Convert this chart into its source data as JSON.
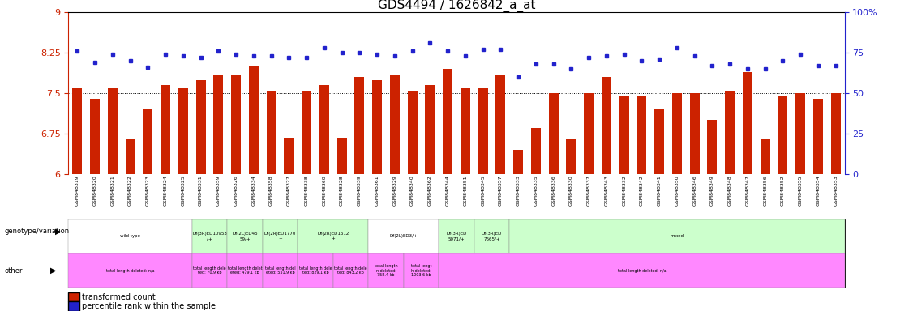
{
  "title": "GDS4494 / 1626842_a_at",
  "samples": [
    "GSM848319",
    "GSM848320",
    "GSM848321",
    "GSM848322",
    "GSM848323",
    "GSM848324",
    "GSM848325",
    "GSM848331",
    "GSM848359",
    "GSM848326",
    "GSM848334",
    "GSM848358",
    "GSM848327",
    "GSM848338",
    "GSM848360",
    "GSM848328",
    "GSM848339",
    "GSM848361",
    "GSM848329",
    "GSM848340",
    "GSM848362",
    "GSM848344",
    "GSM848351",
    "GSM848345",
    "GSM848357",
    "GSM848333",
    "GSM848335",
    "GSM848336",
    "GSM848330",
    "GSM848337",
    "GSM848343",
    "GSM848332",
    "GSM848342",
    "GSM848341",
    "GSM848350",
    "GSM848346",
    "GSM848349",
    "GSM848348",
    "GSM848347",
    "GSM848356",
    "GSM848352",
    "GSM848355",
    "GSM848354",
    "GSM848353"
  ],
  "bar_values": [
    7.6,
    7.4,
    7.6,
    6.65,
    7.2,
    7.65,
    7.6,
    7.75,
    7.85,
    7.85,
    8.0,
    7.55,
    6.67,
    7.55,
    7.65,
    6.68,
    7.8,
    7.75,
    7.85,
    7.55,
    7.65,
    7.95,
    7.6,
    7.6,
    7.85,
    6.45,
    6.85,
    7.5,
    6.65,
    7.5,
    7.8,
    7.45,
    7.45,
    7.2,
    7.5,
    7.5,
    7.0,
    7.55,
    7.9,
    6.65,
    7.45,
    7.5,
    7.4,
    7.5
  ],
  "dot_values": [
    76,
    69,
    74,
    70,
    66,
    74,
    73,
    72,
    76,
    74,
    73,
    73,
    72,
    72,
    78,
    75,
    75,
    74,
    73,
    76,
    81,
    76,
    73,
    77,
    77,
    60,
    68,
    68,
    65,
    72,
    73,
    74,
    70,
    71,
    78,
    73,
    67,
    68,
    65,
    65,
    70,
    74,
    67,
    67
  ],
  "ymin": 6,
  "ymax": 9,
  "yticks_left": [
    6,
    6.75,
    7.5,
    8.25,
    9
  ],
  "ytick_labels_left": [
    "6",
    "6.75",
    "7.5",
    "8.25",
    "9"
  ],
  "yticks_right": [
    0,
    25,
    50,
    75,
    100
  ],
  "ytick_labels_right": [
    "0",
    "25",
    "50",
    "75",
    "100%"
  ],
  "bar_color": "#cc2200",
  "dot_color": "#2222cc",
  "genotype_groups": [
    {
      "label": "wild type",
      "start": 0,
      "end": 7,
      "color": "#ffffff"
    },
    {
      "label": "Df(3R)ED10953\n/+",
      "start": 7,
      "end": 9,
      "color": "#ccffcc"
    },
    {
      "label": "Df(2L)ED45\n59/+",
      "start": 9,
      "end": 11,
      "color": "#ccffcc"
    },
    {
      "label": "Df(2R)ED1770\n+",
      "start": 11,
      "end": 13,
      "color": "#ccffcc"
    },
    {
      "label": "Df(2R)ED1612\n+",
      "start": 13,
      "end": 17,
      "color": "#ccffcc"
    },
    {
      "label": "Df(2L)ED3/+",
      "start": 17,
      "end": 21,
      "color": "#ffffff"
    },
    {
      "label": "Df(3R)ED\n5071/+",
      "start": 21,
      "end": 23,
      "color": "#ccffcc"
    },
    {
      "label": "Df(3R)ED\n7665/+",
      "start": 23,
      "end": 25,
      "color": "#ccffcc"
    },
    {
      "label": "mixed",
      "start": 25,
      "end": 44,
      "color": "#ccffcc"
    }
  ],
  "other_groups": [
    {
      "label": "total length deleted: n/a",
      "start": 0,
      "end": 7,
      "color": "#ff88ff"
    },
    {
      "label": "total length dele\nted: 70.9 kb",
      "start": 7,
      "end": 9,
      "color": "#ff88ff"
    },
    {
      "label": "total length delet\neted: 479.1 kb",
      "start": 9,
      "end": 11,
      "color": "#ff88ff"
    },
    {
      "label": "total length del\neted: 551.9 kb",
      "start": 11,
      "end": 13,
      "color": "#ff88ff"
    },
    {
      "label": "total length dele\nted: 829.1 kb",
      "start": 13,
      "end": 15,
      "color": "#ff88ff"
    },
    {
      "label": "total length dele\nted: 843.2 kb",
      "start": 15,
      "end": 17,
      "color": "#ff88ff"
    },
    {
      "label": "total length\nn deleted:\n755.4 kb",
      "start": 17,
      "end": 19,
      "color": "#ff88ff"
    },
    {
      "label": "total lengt\nh deleted:\n1003.6 kb",
      "start": 19,
      "end": 21,
      "color": "#ff88ff"
    },
    {
      "label": "total length deleted: n/a",
      "start": 21,
      "end": 44,
      "color": "#ff88ff"
    }
  ],
  "legend_bar_label": "transformed count",
  "legend_dot_label": "percentile rank within the sample",
  "genotype_row_label": "genotype/variation",
  "other_row_label": "other"
}
